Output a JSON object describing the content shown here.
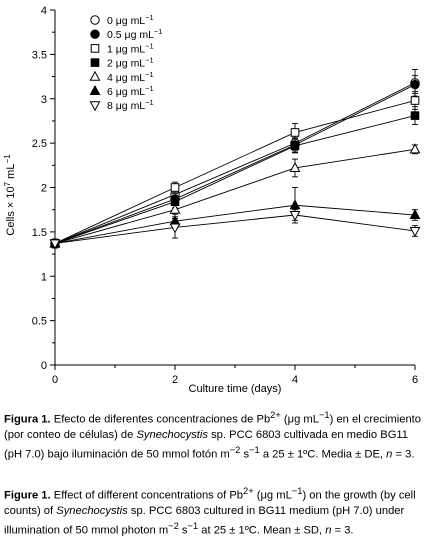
{
  "chart_data": {
    "type": "line",
    "xlabel": "Culture time (days)",
    "ylabel": "Cells × 10",
    "ylabel_exp": "7",
    "ylabel_unit": " mL",
    "ylabel_unit_exp": "−1",
    "xlim": [
      0,
      6
    ],
    "ylim": [
      0,
      4
    ],
    "x_ticks": [
      "0",
      "2",
      "4",
      "6"
    ],
    "y_ticks": [
      "0",
      "0.5",
      "1",
      "1.5",
      "2",
      "2.5",
      "3",
      "3.5",
      "4"
    ],
    "grid": false,
    "legend_position": "top-left",
    "x": [
      0,
      2,
      4,
      6
    ],
    "series": [
      {
        "name": "0 μg mL",
        "marker": "circle-open",
        "values": [
          1.37,
          1.92,
          2.5,
          3.18
        ],
        "errors": [
          0.05,
          0.06,
          0.08,
          0.15
        ]
      },
      {
        "name": "0.5 μg mL",
        "marker": "circle-filled",
        "values": [
          1.37,
          1.87,
          2.48,
          3.16
        ],
        "errors": [
          0.05,
          0.06,
          0.08,
          0.1
        ]
      },
      {
        "name": "1 μg mL",
        "marker": "square-open",
        "values": [
          1.37,
          2.0,
          2.62,
          2.98
        ],
        "errors": [
          0.05,
          0.06,
          0.1,
          0.1
        ]
      },
      {
        "name": "2 μg mL",
        "marker": "square-filled",
        "values": [
          1.37,
          1.84,
          2.47,
          2.81
        ],
        "errors": [
          0.05,
          0.07,
          0.08,
          0.1
        ]
      },
      {
        "name": "4 μg mL",
        "marker": "triangle-up-open",
        "values": [
          1.37,
          1.75,
          2.22,
          2.43
        ],
        "errors": [
          0.05,
          0.1,
          0.1,
          0.05
        ]
      },
      {
        "name": "6 μg mL",
        "marker": "triangle-up-filled",
        "values": [
          1.37,
          1.62,
          1.8,
          1.69
        ],
        "errors": [
          0.05,
          0.08,
          0.2,
          0.06
        ]
      },
      {
        "name": "8 μg mL",
        "marker": "triangle-down-open",
        "values": [
          1.37,
          1.55,
          1.69,
          1.51
        ],
        "errors": [
          0.05,
          0.12,
          0.06,
          0.06
        ]
      }
    ],
    "legend_unit_exp": "−1"
  },
  "caption_es": {
    "label": "Figura 1.",
    "p1": " Efecto de diferentes concentraciones de Pb",
    "ion_exp": "2+",
    "p2": " (μg mL",
    "unit_exp": "−1",
    "p3": ") en el crecimiento (por conteo de células) de ",
    "species": "Synechocystis",
    "p4": " sp. PCC 6803 cultivada en medio BG11 (pH 7.0) bajo iluminación de 50 mmol fotón m",
    "m_exp": "−2",
    "p5": " s",
    "s_exp": "−1",
    "p6": " a 25 ± 1ºC. Media ± DE, ",
    "n": "n",
    "p7": " = 3."
  },
  "caption_en": {
    "label": "Figure 1.",
    "p1": " Effect of different concentrations of Pb",
    "ion_exp": "2+",
    "p2": " (μg mL",
    "unit_exp": "−1",
    "p3": ") on the growth (by cell counts) of ",
    "species": "Synechocystis",
    "p4": " sp. PCC 6803 cultured in BG11 medium (pH 7.0) under illumination of 50 mmol photon m",
    "m_exp": "−2",
    "p5": " s",
    "s_exp": "−1",
    "p6": " at 25 ± 1ºC. Mean ± SD, ",
    "n": "n",
    "p7": " = 3."
  }
}
